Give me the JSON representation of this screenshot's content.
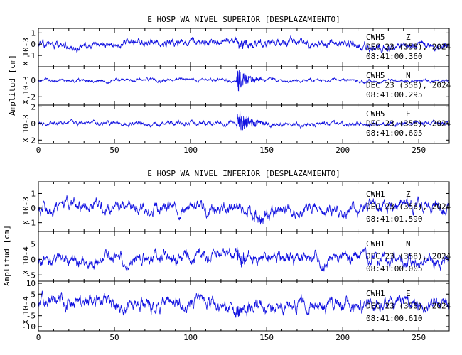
{
  "chart_data": [
    {
      "type": "line",
      "title": "E HOSP WA NIVEL SUPERIOR [DESPLAZAMIENTO]",
      "ylabel": "Amplitud [cm]",
      "xlim": [
        0,
        270
      ],
      "x_ticks": [
        0,
        50,
        100,
        150,
        200,
        250
      ],
      "x_tick_labels": [
        "0",
        "50",
        "100",
        "150",
        "200",
        "250"
      ],
      "trace_color": "#1010e0",
      "panels": [
        {
          "name": "CWH5 Z",
          "scale_label": "X 10-3",
          "ylim": [
            -2,
            1.4
          ],
          "y_ticks": [
            1,
            0,
            -1
          ],
          "y_tick_labels": [
            "1",
            "0",
            "-1"
          ],
          "station": "CWH5",
          "component": "Z",
          "date": "DEC 23 (358), 2024",
          "time": "08:41:00.360",
          "noise_amp": 0.45,
          "burst_amp": 0.5,
          "burst_start": 130,
          "burst_end": 160,
          "drift": 0.3,
          "seed": 11
        },
        {
          "name": "CWH5 N",
          "scale_label": "X 10-3",
          "ylim": [
            -3,
            1.6
          ],
          "y_ticks": [
            0,
            -2
          ],
          "y_tick_labels": [
            "0",
            "-2"
          ],
          "station": "CWH5",
          "component": "N",
          "date": "DEC 23 (358), 2024",
          "time": "08:41:00.295",
          "noise_amp": 0.25,
          "burst_amp": 1.8,
          "burst_start": 130,
          "burst_end": 150,
          "drift": 0.1,
          "seed": 23
        },
        {
          "name": "CWH5 E",
          "scale_label": "X 10-3",
          "ylim": [
            -2.4,
            2.2
          ],
          "y_ticks": [
            2,
            0,
            -2
          ],
          "y_tick_labels": [
            "2",
            "0",
            "-2"
          ],
          "station": "CWH5",
          "component": "E",
          "date": "DEC 23 (358), 2024",
          "time": "08:41:00.605",
          "noise_amp": 0.35,
          "burst_amp": 1.8,
          "burst_start": 130,
          "burst_end": 155,
          "drift": 0.2,
          "seed": 37
        }
      ]
    },
    {
      "type": "line",
      "title": "E HOSP WA NIVEL INFERIOR [DESPLAZAMIENTO]",
      "ylabel": "Amplitud [cm]",
      "xlim": [
        0,
        270
      ],
      "x_ticks": [
        0,
        50,
        100,
        150,
        200,
        250
      ],
      "x_tick_labels": [
        "0",
        "50",
        "100",
        "150",
        "200",
        "250"
      ],
      "trace_color": "#1010e0",
      "panels": [
        {
          "name": "CWH1 Z",
          "scale_label": "X 10-3",
          "ylim": [
            -1.6,
            1.8
          ],
          "y_ticks": [
            1,
            0,
            -1
          ],
          "y_tick_labels": [
            "1",
            "0",
            "-1"
          ],
          "station": "CWH1",
          "component": "Z",
          "date": "DEC 23 (358), 2024",
          "time": "08:41:01.590",
          "noise_amp": 0.55,
          "burst_amp": 0.4,
          "burst_start": 140,
          "burst_end": 170,
          "drift": 0.3,
          "seed": 51
        },
        {
          "name": "CWH1 N",
          "scale_label": "X 10-4",
          "ylim": [
            -7,
            9
          ],
          "y_ticks": [
            5,
            0,
            -5
          ],
          "y_tick_labels": [
            "5",
            "0",
            "-5"
          ],
          "station": "CWH1",
          "component": "N",
          "date": "DEC 23 (358), 2024",
          "time": "08:41:00.005",
          "noise_amp": 2.6,
          "burst_amp": 3.5,
          "burst_start": 130,
          "burst_end": 145,
          "drift": 1.0,
          "seed": 67
        },
        {
          "name": "CWH1 E",
          "scale_label": "X 10-4",
          "ylim": [
            -12,
            11
          ],
          "y_ticks": [
            10,
            5,
            0,
            -5,
            -10
          ],
          "y_tick_labels": [
            "10",
            "5",
            "0",
            "-5",
            "-10"
          ],
          "station": "CWH1",
          "component": "E",
          "date": "DEC 23 (358), 2024",
          "time": "08:41:00.610",
          "noise_amp": 4.0,
          "burst_amp": 3.5,
          "burst_start": 130,
          "burst_end": 150,
          "drift": 1.5,
          "seed": 83
        }
      ]
    }
  ]
}
